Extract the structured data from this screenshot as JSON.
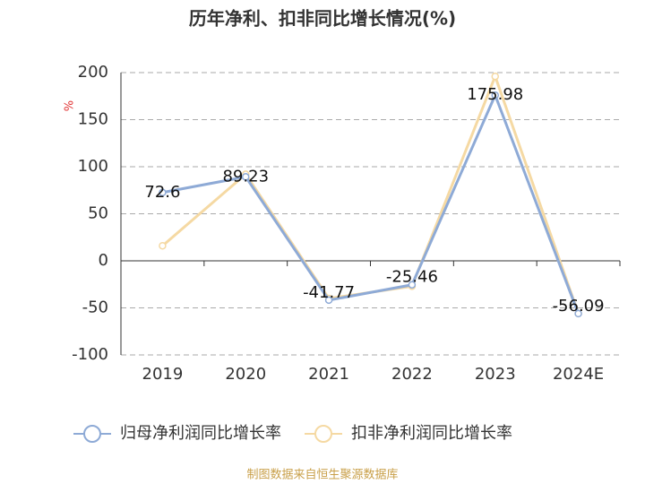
{
  "chart_data": {
    "type": "line",
    "title": "历年净利、扣非同比增长情况(%)",
    "y_unit": "%",
    "source": "制图数据来自恒生聚源数据库",
    "categories": [
      "2019",
      "2020",
      "2021",
      "2022",
      "2023",
      "2024E"
    ],
    "series": [
      {
        "name": "归母净利润同比增长率",
        "color": "#8eaad6",
        "values": [
          72.6,
          89.23,
          -41.77,
          -25.46,
          175.98,
          -56.09
        ],
        "show_labels": true
      },
      {
        "name": "扣非净利润同比增长率",
        "color": "#f5d9a3",
        "values": [
          16,
          92,
          -40,
          -27,
          196,
          -56
        ],
        "show_labels": false
      }
    ],
    "ylim": [
      -100,
      200
    ],
    "yticks": [
      -100,
      -50,
      0,
      50,
      100,
      150,
      200
    ],
    "grid": true
  }
}
